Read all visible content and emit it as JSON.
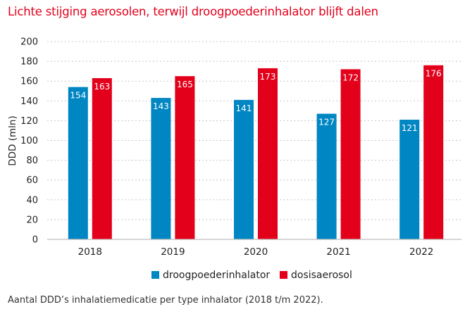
{
  "title": "Lichte stijging aerosolen, terwijl droogpoederinhalator blijft dalen",
  "caption": "Aantal DDD’s inhalatiemedicatie per type inhalator (2018 t/m 2022).",
  "chart_data": {
    "type": "bar",
    "title": "Lichte stijging aerosolen, terwijl droogpoederinhalator blijft dalen",
    "xlabel": "",
    "ylabel": "DDD (mln)",
    "categories": [
      "2018",
      "2019",
      "2020",
      "2021",
      "2022"
    ],
    "series": [
      {
        "name": "droogpoederinhalator",
        "color": "#0086c3",
        "values": [
          154,
          143,
          141,
          127,
          121
        ]
      },
      {
        "name": "dosisaerosol",
        "color": "#e3001b",
        "values": [
          163,
          165,
          173,
          172,
          176
        ]
      }
    ],
    "ylim": [
      0,
      200
    ],
    "yticks": [
      0,
      20,
      40,
      60,
      80,
      100,
      120,
      140,
      160,
      180,
      200
    ],
    "grid": true,
    "legend": "bottom",
    "data_labels": true
  }
}
